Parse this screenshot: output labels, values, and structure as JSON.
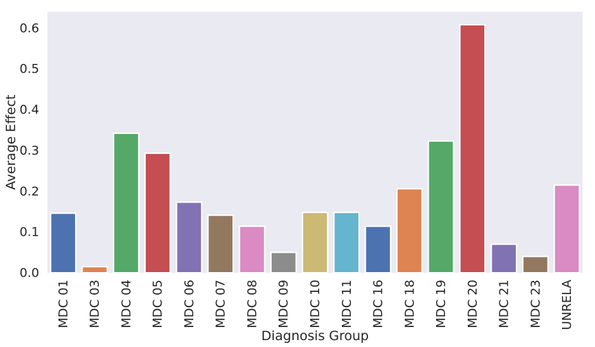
{
  "chart_data": {
    "type": "bar",
    "title": "",
    "xlabel": "Diagnosis Group",
    "ylabel": "Average Effect",
    "categories": [
      "MDC 01",
      "MDC 03",
      "MDC 04",
      "MDC 05",
      "MDC 06",
      "MDC 07",
      "MDC 08",
      "MDC 09",
      "MDC 10",
      "MDC 11",
      "MDC 16",
      "MDC 18",
      "MDC 19",
      "MDC 20",
      "MDC 21",
      "MDC 23",
      "UNRELA"
    ],
    "values": [
      0.146,
      0.015,
      0.342,
      0.293,
      0.173,
      0.141,
      0.114,
      0.05,
      0.148,
      0.148,
      0.114,
      0.206,
      0.323,
      0.608,
      0.07,
      0.04,
      0.215
    ],
    "colors": [
      "#4c72b0",
      "#dd8452",
      "#55a868",
      "#c44e52",
      "#8172b3",
      "#937860",
      "#da8bc3",
      "#8c8c8c",
      "#ccb974",
      "#64b5cd",
      "#4c72b0",
      "#dd8452",
      "#55a868",
      "#c44e52",
      "#8172b3",
      "#937860",
      "#da8bc3"
    ],
    "yticks": [
      "0.0",
      "0.1",
      "0.2",
      "0.3",
      "0.4",
      "0.5",
      "0.6"
    ],
    "ylim": [
      0,
      0.64
    ],
    "grid": false,
    "background": "#eaeaf2"
  }
}
